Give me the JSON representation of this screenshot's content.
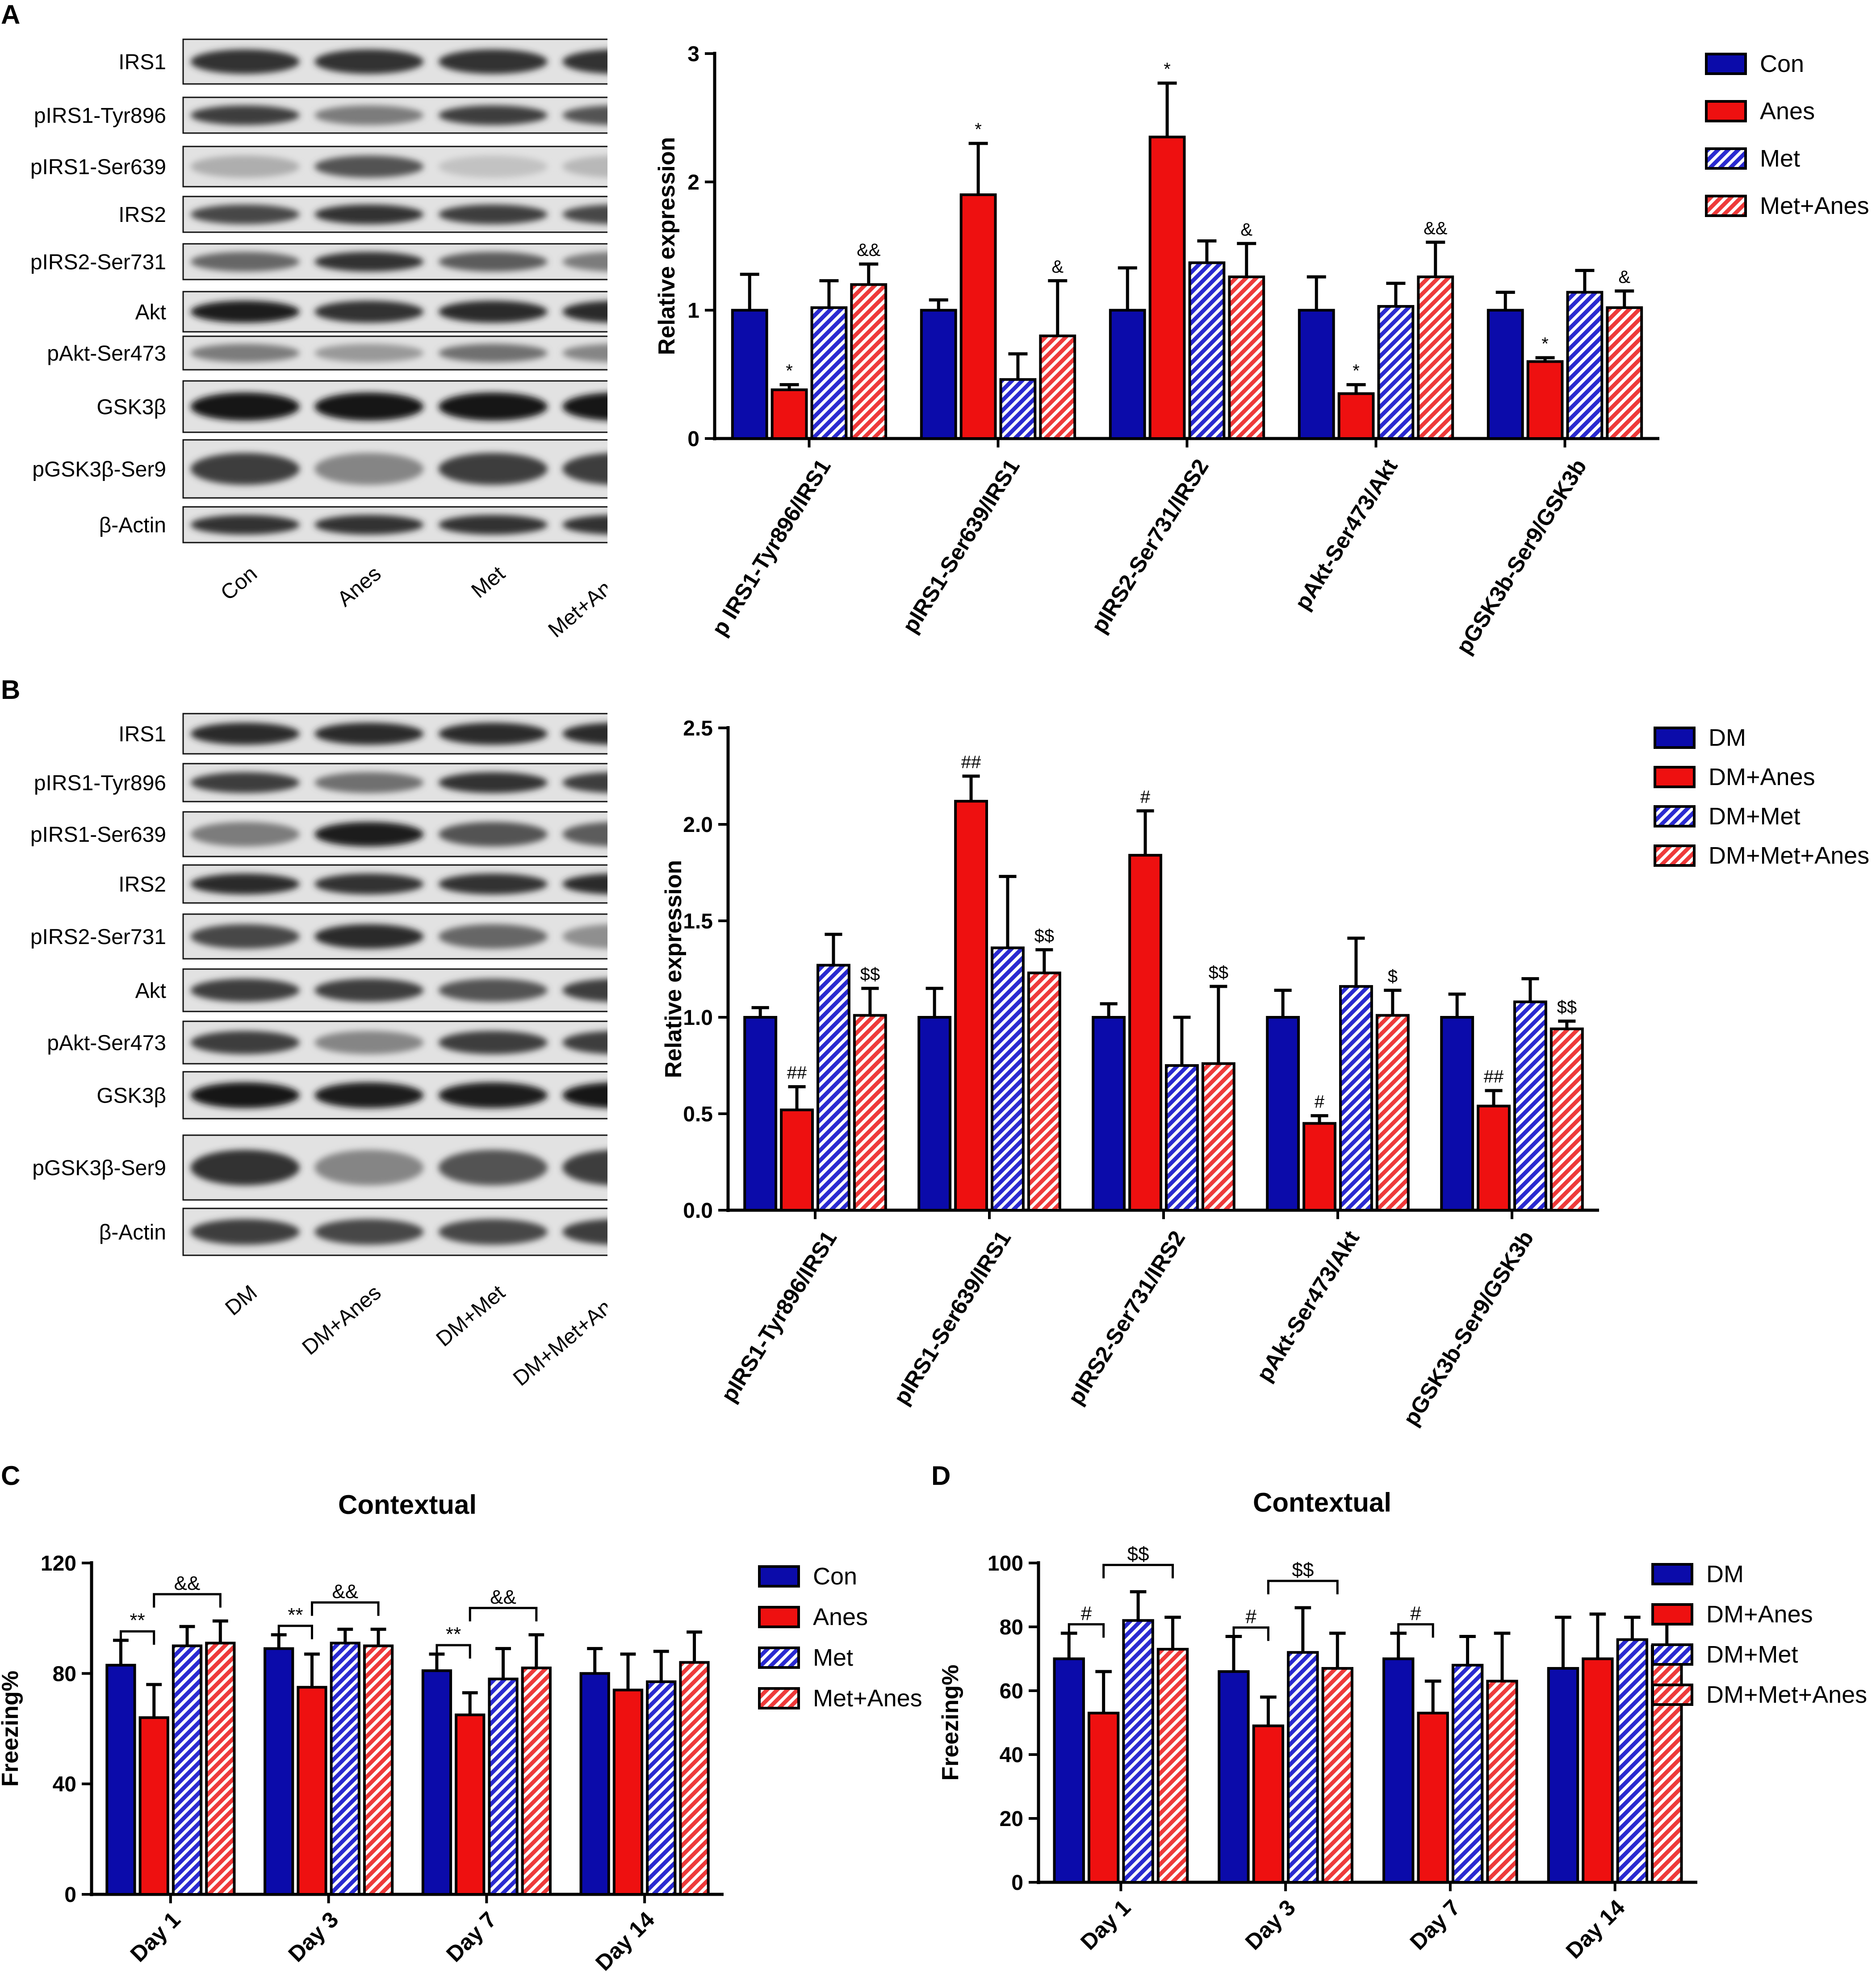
{
  "panels": {
    "A": {
      "letter": "A",
      "blot": {
        "rows": [
          "IRS1",
          "pIRS1-Tyr896",
          "pIRS1-Ser639",
          "IRS2",
          "pIRS2-Ser731",
          "Akt",
          "pAkt-Ser473",
          "GSK3β",
          "pGSK3β-Ser9",
          "β-Actin"
        ],
        "lanes": [
          "Con",
          "Anes",
          "Met",
          "Met+Anes"
        ],
        "intensity": [
          [
            0.85,
            0.85,
            0.85,
            0.85
          ],
          [
            0.8,
            0.5,
            0.8,
            0.7
          ],
          [
            0.25,
            0.7,
            0.15,
            0.2
          ],
          [
            0.75,
            0.85,
            0.8,
            0.75
          ],
          [
            0.6,
            0.85,
            0.65,
            0.5
          ],
          [
            0.95,
            0.85,
            0.9,
            0.9
          ],
          [
            0.5,
            0.35,
            0.55,
            0.45
          ],
          [
            0.98,
            0.98,
            0.98,
            0.98
          ],
          [
            0.8,
            0.45,
            0.8,
            0.8
          ],
          [
            0.85,
            0.85,
            0.85,
            0.85
          ]
        ]
      }
    },
    "B": {
      "letter": "B",
      "blot": {
        "rows": [
          "IRS1",
          "pIRS1-Tyr896",
          "pIRS1-Ser639",
          "IRS2",
          "pIRS2-Ser731",
          "Akt",
          "pAkt-Ser473",
          "GSK3β",
          "pGSK3β-Ser9",
          "β-Actin"
        ],
        "lanes": [
          "DM",
          "DM+Anes",
          "DM+Met",
          "DM+Met+Anes"
        ],
        "intensity": [
          [
            0.9,
            0.9,
            0.9,
            0.9
          ],
          [
            0.8,
            0.55,
            0.85,
            0.8
          ],
          [
            0.5,
            0.95,
            0.7,
            0.65
          ],
          [
            0.9,
            0.85,
            0.85,
            0.9
          ],
          [
            0.75,
            0.9,
            0.6,
            0.4
          ],
          [
            0.8,
            0.8,
            0.7,
            0.8
          ],
          [
            0.8,
            0.45,
            0.8,
            0.8
          ],
          [
            0.98,
            0.95,
            0.95,
            0.98
          ],
          [
            0.85,
            0.45,
            0.7,
            0.8
          ],
          [
            0.8,
            0.75,
            0.75,
            0.8
          ]
        ]
      }
    },
    "C": {
      "letter": "C"
    },
    "D": {
      "letter": "D"
    }
  },
  "chart_data": [
    {
      "id": "A",
      "type": "bar",
      "ylabel": "Relative expression",
      "ylim": [
        0,
        3
      ],
      "yticks": [
        "0",
        "1",
        "2",
        "3"
      ],
      "categories": [
        "p IRS1-Tyr896/IRS1",
        "pIRS1-Ser639/IRS1",
        "pIRS2-Ser731/IRS2",
        "pAkt-Ser473/Akt",
        "pGSK3b-Ser9/GSK3b"
      ],
      "series": [
        {
          "name": "Con",
          "color": "#0b0baa",
          "pattern": "solid",
          "values": [
            1.0,
            1.0,
            1.0,
            1.0,
            1.0
          ],
          "errors": [
            0.28,
            0.08,
            0.33,
            0.26,
            0.14
          ],
          "marks": [
            "",
            "",
            "",
            "",
            ""
          ]
        },
        {
          "name": "Anes",
          "color": "#ee1010",
          "pattern": "solid",
          "values": [
            0.38,
            1.9,
            2.35,
            0.35,
            0.6
          ],
          "errors": [
            0.04,
            0.4,
            0.42,
            0.07,
            0.03
          ],
          "marks": [
            "*",
            "*",
            "*",
            "*",
            "*"
          ]
        },
        {
          "name": "Met",
          "color": "#2a2ad0",
          "pattern": "hatch",
          "values": [
            1.02,
            0.46,
            1.37,
            1.03,
            1.14
          ],
          "errors": [
            0.21,
            0.2,
            0.17,
            0.18,
            0.17
          ],
          "marks": [
            "",
            "",
            "",
            "",
            ""
          ]
        },
        {
          "name": "Met+Anes",
          "color": "#ee3a3a",
          "pattern": "hatch",
          "values": [
            1.2,
            0.8,
            1.26,
            1.26,
            1.02
          ],
          "errors": [
            0.16,
            0.43,
            0.26,
            0.27,
            0.13
          ],
          "marks": [
            "&&",
            "&",
            "&",
            "&&",
            "&"
          ]
        }
      ],
      "brackets": []
    },
    {
      "id": "B",
      "type": "bar",
      "ylabel": "Relative expression",
      "ylim": [
        0,
        2.5
      ],
      "yticks": [
        "0.0",
        "0.5",
        "1.0",
        "1.5",
        "2.0",
        "2.5"
      ],
      "categories": [
        "pIRS1-Tyr896/IRS1",
        "pIRS1-Ser639/IRS1",
        "pIRS2-Ser731/IRS2",
        "pAkt-Ser473/Akt",
        "pGSK3b-Ser9/GSK3b"
      ],
      "series": [
        {
          "name": "DM",
          "color": "#0b0baa",
          "pattern": "solid",
          "values": [
            1.0,
            1.0,
            1.0,
            1.0,
            1.0
          ],
          "errors": [
            0.05,
            0.15,
            0.07,
            0.14,
            0.12
          ],
          "marks": [
            "",
            "",
            "",
            "",
            ""
          ]
        },
        {
          "name": "DM+Anes",
          "color": "#ee1010",
          "pattern": "solid",
          "values": [
            0.52,
            2.12,
            1.84,
            0.45,
            0.54
          ],
          "errors": [
            0.12,
            0.13,
            0.23,
            0.04,
            0.08
          ],
          "marks": [
            "##",
            "##",
            "#",
            "#",
            "##"
          ]
        },
        {
          "name": "DM+Met",
          "color": "#2a2ad0",
          "pattern": "hatch",
          "values": [
            1.27,
            1.36,
            0.75,
            1.16,
            1.08
          ],
          "errors": [
            0.16,
            0.37,
            0.25,
            0.25,
            0.12
          ],
          "marks": [
            "",
            "",
            "",
            "",
            ""
          ]
        },
        {
          "name": "DM+Met+Anes",
          "color": "#ee3a3a",
          "pattern": "hatch",
          "values": [
            1.01,
            1.23,
            0.76,
            1.01,
            0.94
          ],
          "errors": [
            0.14,
            0.12,
            0.4,
            0.13,
            0.04
          ],
          "marks": [
            "$$",
            "$$",
            "$$",
            "$",
            "$$"
          ]
        }
      ],
      "brackets": []
    },
    {
      "id": "C",
      "type": "bar",
      "title": "Contextual",
      "ylabel": "Freezing%",
      "ylim": [
        0,
        120
      ],
      "yticks": [
        "0",
        "40",
        "80",
        "120"
      ],
      "categories": [
        "Day 1",
        "Day 3",
        "Day 7",
        "Day 14"
      ],
      "series": [
        {
          "name": "Con",
          "color": "#0b0baa",
          "pattern": "solid",
          "values": [
            83,
            89,
            81,
            80
          ],
          "errors": [
            9,
            5,
            6,
            9
          ],
          "marks": [
            "",
            "",
            "",
            ""
          ]
        },
        {
          "name": "Anes",
          "color": "#ee1010",
          "pattern": "solid",
          "values": [
            64,
            75,
            65,
            74
          ],
          "errors": [
            12,
            12,
            8,
            13
          ],
          "marks": [
            "",
            "",
            "",
            ""
          ]
        },
        {
          "name": "Met",
          "color": "#2a2ad0",
          "pattern": "hatch",
          "values": [
            90,
            91,
            78,
            77
          ],
          "errors": [
            7,
            5,
            11,
            11
          ],
          "marks": [
            "",
            "",
            "",
            ""
          ]
        },
        {
          "name": "Met+Anes",
          "color": "#ee3a3a",
          "pattern": "hatch",
          "values": [
            91,
            90,
            82,
            84
          ],
          "errors": [
            8,
            6,
            12,
            11
          ],
          "marks": [
            "",
            "",
            "",
            ""
          ]
        }
      ],
      "brackets": [
        {
          "group": 0,
          "from": 0,
          "to": 1,
          "label": "**",
          "level": 0
        },
        {
          "group": 0,
          "from": 1,
          "to": 3,
          "label": "&&",
          "level": 1
        },
        {
          "group": 1,
          "from": 0,
          "to": 1,
          "label": "**",
          "level": 0
        },
        {
          "group": 1,
          "from": 1,
          "to": 3,
          "label": "&&",
          "level": 1
        },
        {
          "group": 2,
          "from": 0,
          "to": 1,
          "label": "**",
          "level": 0
        },
        {
          "group": 2,
          "from": 1,
          "to": 3,
          "label": "&&",
          "level": 1
        }
      ]
    },
    {
      "id": "D",
      "type": "bar",
      "title": "Contextual",
      "ylabel": "Freezing%",
      "ylim": [
        0,
        100
      ],
      "yticks": [
        "0",
        "20",
        "40",
        "60",
        "80",
        "100"
      ],
      "categories": [
        "Day 1",
        "Day 3",
        "Day 7",
        "Day 14"
      ],
      "series": [
        {
          "name": "DM",
          "color": "#0b0baa",
          "pattern": "solid",
          "values": [
            70,
            66,
            70,
            67
          ],
          "errors": [
            8,
            11,
            8,
            16
          ],
          "marks": [
            "",
            "",
            "",
            ""
          ]
        },
        {
          "name": "DM+Anes",
          "color": "#ee1010",
          "pattern": "solid",
          "values": [
            53,
            49,
            53,
            70
          ],
          "errors": [
            13,
            9,
            10,
            14
          ],
          "marks": [
            "",
            "",
            "",
            ""
          ]
        },
        {
          "name": "DM+Met",
          "color": "#2a2ad0",
          "pattern": "hatch",
          "values": [
            82,
            72,
            68,
            76
          ],
          "errors": [
            9,
            14,
            9,
            7
          ],
          "marks": [
            "",
            "",
            "",
            ""
          ]
        },
        {
          "name": "DM+Met+Anes",
          "color": "#ee3a3a",
          "pattern": "hatch",
          "values": [
            73,
            67,
            63,
            74
          ],
          "errors": [
            10,
            11,
            15,
            9
          ],
          "marks": [
            "",
            "",
            "",
            ""
          ]
        }
      ],
      "brackets": [
        {
          "group": 0,
          "from": 0,
          "to": 1,
          "label": "#",
          "level": 0
        },
        {
          "group": 0,
          "from": 1,
          "to": 3,
          "label": "$$",
          "level": 1
        },
        {
          "group": 1,
          "from": 0,
          "to": 1,
          "label": "#",
          "level": 0
        },
        {
          "group": 1,
          "from": 1,
          "to": 3,
          "label": "$$",
          "level": 1
        },
        {
          "group": 2,
          "from": 0,
          "to": 1,
          "label": "#",
          "level": 0
        }
      ]
    }
  ]
}
